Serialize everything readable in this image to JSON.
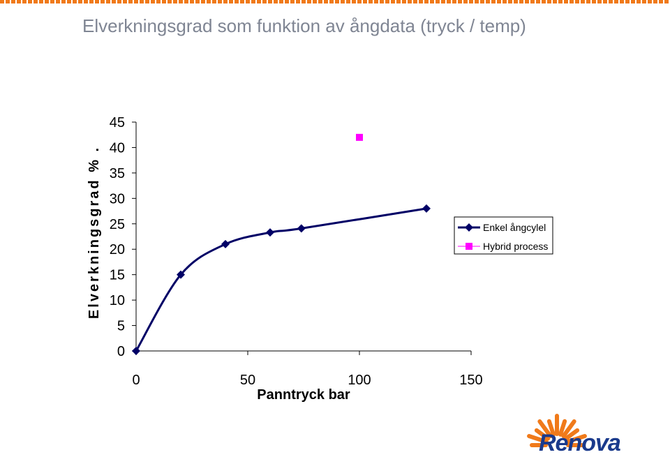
{
  "title": "Elverkningsgrad som funktion av ångdata (tryck / temp)",
  "chart_data": {
    "type": "line",
    "xlabel": "Panntryck bar",
    "ylabel": "Elverkningsgrad % .",
    "xlim": [
      0,
      150
    ],
    "ylim": [
      0,
      45
    ],
    "xticks": [
      0,
      50,
      100,
      150
    ],
    "yticks": [
      0,
      5,
      10,
      15,
      20,
      25,
      30,
      35,
      40,
      45
    ],
    "grid": false,
    "legend": "right",
    "series": [
      {
        "name": "Enkel ångcylel",
        "type": "line",
        "color": "#000066",
        "marker": "diamond",
        "x": [
          0,
          20,
          40,
          60,
          74,
          130
        ],
        "y": [
          0,
          15,
          21,
          23.3,
          24.1,
          28
        ]
      },
      {
        "name": "Hybrid process",
        "type": "scatter",
        "color": "#ff00ff",
        "marker": "square",
        "x": [
          100
        ],
        "y": [
          42
        ]
      }
    ]
  },
  "logo": {
    "text": "Renova",
    "color": "#1a3a8c",
    "accent": "#f07a1a"
  }
}
